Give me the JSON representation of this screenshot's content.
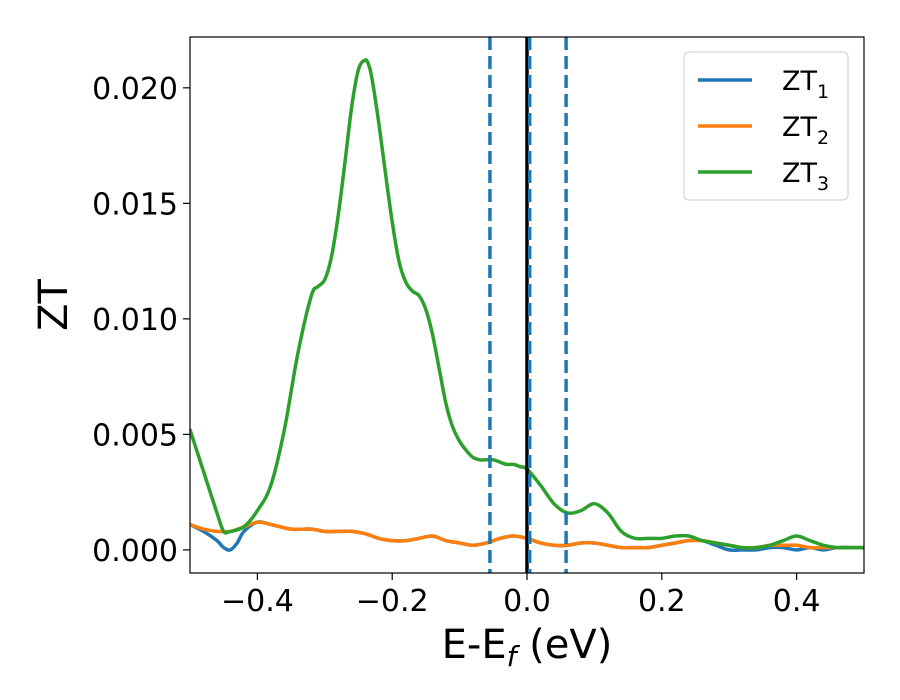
{
  "chart_data": {
    "type": "line",
    "xlabel": "E-E",
    "xlabel_sub": "f",
    "xlabel_unit": " (eV)",
    "ylabel": "ZT",
    "xlim": [
      -0.5,
      0.5
    ],
    "ylim": [
      -0.001,
      0.0222
    ],
    "xticks": [
      {
        "value": -0.4,
        "label": "−0.4"
      },
      {
        "value": -0.2,
        "label": "−0.2"
      },
      {
        "value": 0.0,
        "label": "0.0"
      },
      {
        "value": 0.2,
        "label": "0.2"
      },
      {
        "value": 0.4,
        "label": "0.4"
      }
    ],
    "yticks": [
      {
        "value": 0.0,
        "label": "0.000"
      },
      {
        "value": 0.005,
        "label": "0.005"
      },
      {
        "value": 0.01,
        "label": "0.010"
      },
      {
        "value": 0.015,
        "label": "0.015"
      },
      {
        "value": 0.02,
        "label": "0.020"
      }
    ],
    "grid": false,
    "legend_position": "top-right",
    "vlines": [
      {
        "x": -0.055,
        "color": "#1f77b4",
        "style": "dashed"
      },
      {
        "x": 0.0,
        "color": "#000000",
        "style": "solid"
      },
      {
        "x": 0.004,
        "color": "#1f77b4",
        "style": "dashed"
      },
      {
        "x": 0.058,
        "color": "#1f77b4",
        "style": "dashed"
      }
    ],
    "series": [
      {
        "name": "ZT",
        "name_sub": "1",
        "color": "#1f77b4",
        "x": [
          -0.5,
          -0.48,
          -0.46,
          -0.45,
          -0.44,
          -0.43,
          -0.42,
          -0.4,
          -0.38,
          -0.35,
          -0.32,
          -0.3,
          -0.28,
          -0.26,
          -0.24,
          -0.22,
          -0.2,
          -0.18,
          -0.16,
          -0.14,
          -0.12,
          -0.1,
          -0.08,
          -0.06,
          -0.04,
          -0.02,
          0.0,
          0.02,
          0.04,
          0.06,
          0.08,
          0.1,
          0.12,
          0.14,
          0.16,
          0.18,
          0.2,
          0.22,
          0.24,
          0.26,
          0.28,
          0.3,
          0.32,
          0.34,
          0.36,
          0.38,
          0.4,
          0.42,
          0.44,
          0.46,
          0.48,
          0.5
        ],
        "y": [
          0.0011,
          0.0008,
          0.0004,
          0.0001,
          0.0,
          0.0003,
          0.0008,
          0.0012,
          0.0011,
          0.0009,
          0.0009,
          0.0008,
          0.0008,
          0.0008,
          0.0007,
          0.0005,
          0.0004,
          0.0004,
          0.0005,
          0.0006,
          0.0004,
          0.0003,
          0.0002,
          0.0003,
          0.0005,
          0.0006,
          0.0005,
          0.0003,
          0.0002,
          0.0002,
          0.0003,
          0.0003,
          0.0002,
          0.0001,
          0.0001,
          0.0001,
          0.0002,
          0.0003,
          0.0004,
          0.0004,
          0.0002,
          0.0,
          0.0,
          0.0,
          0.0001,
          0.0001,
          0.0,
          0.0001,
          0.0,
          0.0001,
          0.0001,
          0.0001
        ]
      },
      {
        "name": "ZT",
        "name_sub": "2",
        "color": "#ff7f0e",
        "x": [
          -0.5,
          -0.48,
          -0.46,
          -0.44,
          -0.42,
          -0.4,
          -0.38,
          -0.35,
          -0.32,
          -0.3,
          -0.28,
          -0.26,
          -0.24,
          -0.22,
          -0.2,
          -0.18,
          -0.16,
          -0.14,
          -0.12,
          -0.1,
          -0.08,
          -0.06,
          -0.04,
          -0.02,
          0.0,
          0.02,
          0.04,
          0.06,
          0.08,
          0.1,
          0.12,
          0.14,
          0.16,
          0.18,
          0.2,
          0.22,
          0.24,
          0.26,
          0.28,
          0.3,
          0.32,
          0.34,
          0.36,
          0.38,
          0.4,
          0.42,
          0.44,
          0.46,
          0.48,
          0.5
        ],
        "y": [
          0.0011,
          0.0009,
          0.0008,
          0.0008,
          0.001,
          0.0012,
          0.0011,
          0.0009,
          0.0009,
          0.0008,
          0.0008,
          0.0008,
          0.0007,
          0.0005,
          0.0004,
          0.0004,
          0.0005,
          0.0006,
          0.0004,
          0.0003,
          0.0002,
          0.0003,
          0.0005,
          0.0006,
          0.0005,
          0.0003,
          0.0002,
          0.0002,
          0.0003,
          0.0003,
          0.0002,
          0.0001,
          0.0001,
          0.0001,
          0.0002,
          0.0003,
          0.0004,
          0.0004,
          0.0003,
          0.0002,
          0.0001,
          0.0001,
          0.0002,
          0.0002,
          0.0002,
          0.0001,
          0.0001,
          0.0001,
          0.0001,
          0.0001
        ]
      },
      {
        "name": "ZT",
        "name_sub": "3",
        "color": "#2ca02c",
        "x": [
          -0.5,
          -0.48,
          -0.46,
          -0.45,
          -0.44,
          -0.42,
          -0.4,
          -0.38,
          -0.36,
          -0.34,
          -0.32,
          -0.31,
          -0.3,
          -0.29,
          -0.28,
          -0.27,
          -0.26,
          -0.25,
          -0.24,
          -0.235,
          -0.23,
          -0.22,
          -0.21,
          -0.2,
          -0.19,
          -0.18,
          -0.17,
          -0.16,
          -0.15,
          -0.14,
          -0.13,
          -0.12,
          -0.11,
          -0.1,
          -0.09,
          -0.08,
          -0.07,
          -0.06,
          -0.05,
          -0.04,
          -0.03,
          -0.02,
          -0.01,
          0.0,
          0.02,
          0.04,
          0.06,
          0.08,
          0.1,
          0.12,
          0.14,
          0.16,
          0.18,
          0.2,
          0.22,
          0.24,
          0.26,
          0.28,
          0.3,
          0.32,
          0.34,
          0.36,
          0.38,
          0.4,
          0.42,
          0.44,
          0.46,
          0.48,
          0.5
        ],
        "y": [
          0.0052,
          0.0034,
          0.0016,
          0.0008,
          0.0008,
          0.001,
          0.0017,
          0.0028,
          0.0052,
          0.0085,
          0.011,
          0.0114,
          0.0117,
          0.0127,
          0.0145,
          0.0168,
          0.0192,
          0.0208,
          0.0212,
          0.021,
          0.0204,
          0.0185,
          0.0163,
          0.0142,
          0.0125,
          0.0116,
          0.0112,
          0.011,
          0.0104,
          0.0093,
          0.0078,
          0.0063,
          0.0053,
          0.0047,
          0.0043,
          0.004,
          0.0039,
          0.0039,
          0.0039,
          0.0038,
          0.0037,
          0.0037,
          0.0036,
          0.0035,
          0.0028,
          0.002,
          0.0016,
          0.0017,
          0.002,
          0.0016,
          0.0008,
          0.0005,
          0.0005,
          0.0005,
          0.0006,
          0.0006,
          0.0004,
          0.0003,
          0.0002,
          0.0001,
          0.0001,
          0.0002,
          0.0004,
          0.0006,
          0.0004,
          0.0002,
          0.0001,
          0.0001,
          0.0001
        ]
      }
    ]
  }
}
